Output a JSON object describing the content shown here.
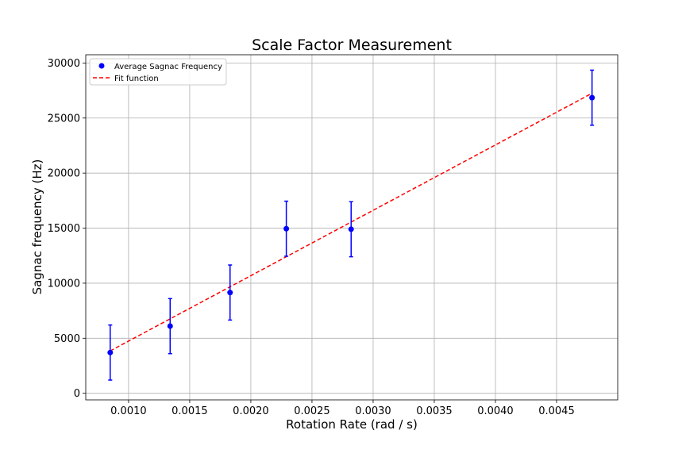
{
  "chart_data": {
    "type": "scatter",
    "title": "Scale Factor Measurement",
    "xlabel": "Rotation Rate (rad / s)",
    "ylabel": "Sagnac frequency (Hz)",
    "xlim": [
      0.00065,
      0.005
    ],
    "ylim": [
      -600,
      30750
    ],
    "xticks": [
      "0.0010",
      "0.0015",
      "0.0020",
      "0.0025",
      "0.0030",
      "0.0035",
      "0.0040",
      "0.0045"
    ],
    "yticks": [
      "0",
      "5000",
      "10000",
      "15000",
      "20000",
      "25000",
      "30000"
    ],
    "grid": true,
    "legend_position": "top-left",
    "series": [
      {
        "name": "Average Sagnac Frequency",
        "kind": "points-with-errorbars",
        "color": "#0000ff",
        "points": [
          {
            "x": 0.00085,
            "y": 3700,
            "err": 2500
          },
          {
            "x": 0.00134,
            "y": 6100,
            "err": 2500
          },
          {
            "x": 0.00183,
            "y": 9150,
            "err": 2500
          },
          {
            "x": 0.00229,
            "y": 14950,
            "err": 2500
          },
          {
            "x": 0.00282,
            "y": 14900,
            "err": 2500
          },
          {
            "x": 0.00479,
            "y": 26850,
            "err": 2500
          }
        ]
      },
      {
        "name": "Fit function",
        "kind": "dashed-line",
        "color": "#ff0000",
        "points": [
          {
            "x": 0.00085,
            "y": 3850
          },
          {
            "x": 0.00479,
            "y": 27250
          }
        ]
      }
    ]
  }
}
